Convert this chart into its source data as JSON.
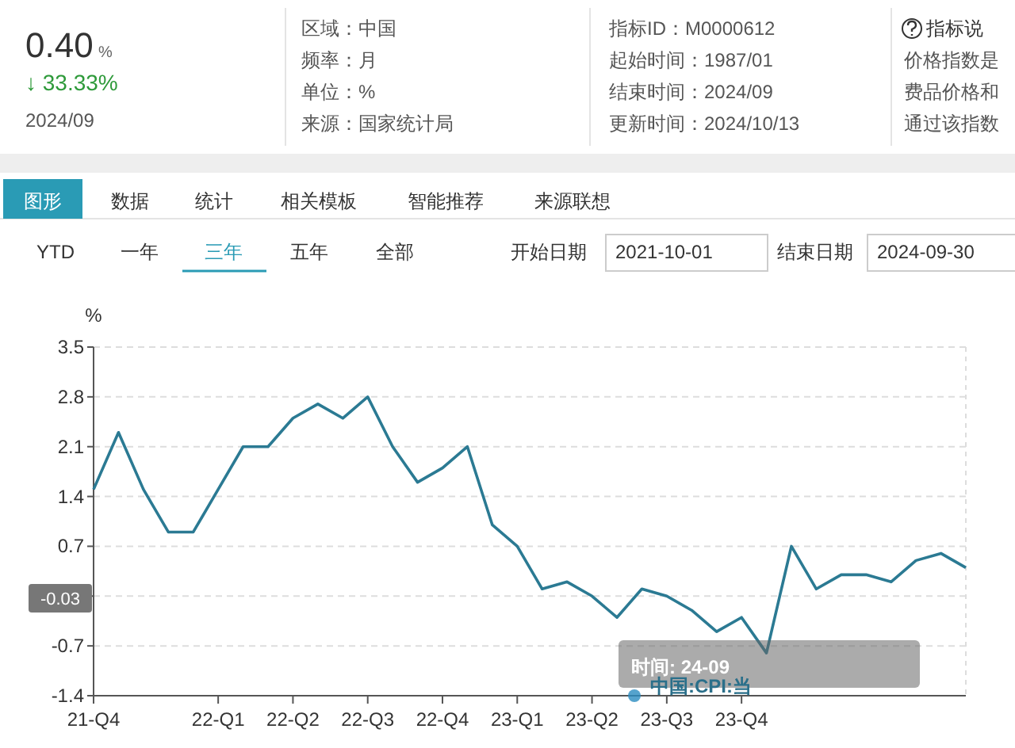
{
  "chart_data": {
    "type": "line",
    "ylabel": "%",
    "categories": [
      "21-Q4",
      null,
      null,
      null,
      null,
      "22-Q1",
      null,
      null,
      "22-Q2",
      null,
      null,
      "22-Q3",
      null,
      null,
      "22-Q4",
      null,
      null,
      "23-Q1",
      null,
      null,
      "23-Q2",
      null,
      null,
      "23-Q3",
      null,
      null,
      "23-Q4",
      null,
      null,
      null,
      null,
      null,
      null,
      null,
      null,
      null
    ],
    "series": [
      {
        "color": "#2b7a93",
        "values": [
          1.5,
          2.3,
          1.5,
          0.9,
          0.9,
          1.5,
          2.1,
          2.1,
          2.5,
          2.7,
          2.5,
          2.8,
          2.1,
          1.6,
          1.8,
          2.1,
          1.0,
          0.7,
          0.1,
          0.2,
          0.0,
          -0.3,
          0.1,
          0.0,
          -0.2,
          -0.5,
          -0.3,
          -0.8,
          0.7,
          0.1,
          0.3,
          0.3,
          0.2,
          0.5,
          0.6,
          0.4
        ]
      }
    ],
    "ylim": [
      -1.4,
      3.5
    ],
    "yticks": [
      -1.4,
      -0.7,
      {
        "value": 0,
        "label": null
      },
      0.7,
      1.4,
      2.1,
      2.8,
      3.5
    ],
    "grid": "y",
    "annotations": [
      "0.40",
      "%",
      "↓ 33.33%",
      "2024/09",
      "区域：中国",
      "频率：月",
      "单位：%",
      "来源：国家统计局",
      "指标ID：M0000612",
      "起始时间：1987/01",
      "结束时间：2024/09",
      "更新时间：2024/10/13",
      "指标说",
      "价格指数是",
      "费品价格和",
      "通过该指数",
      "图形",
      "数据",
      "统计",
      "相关模板",
      "智能推荐",
      "来源联想",
      "YTD",
      "一年",
      "三年",
      "五年",
      "全部",
      "开始日期",
      "2021-10-01",
      "结束日期",
      "2024-09-30",
      {
        "text": "-0.03",
        "y": -0.03
      },
      "时间: 24-09",
      "中国:CPI:当"
    ]
  }
}
